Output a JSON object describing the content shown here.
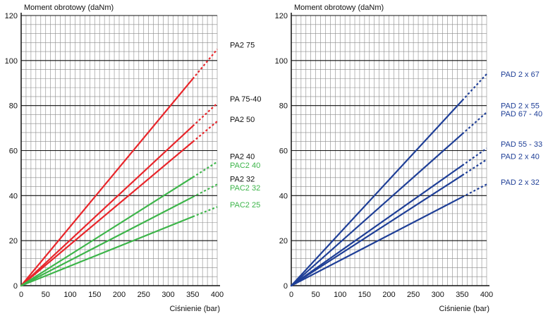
{
  "colors": {
    "red": "#e8262b",
    "green": "#3db54a",
    "blue": "#1f3f97",
    "black": "#111111",
    "grid_minor": "#8a8a8a",
    "grid_major": "#111111"
  },
  "chart_data": [
    {
      "type": "line",
      "ylabel": "Moment obrotowy (daNm)",
      "xlabel": "Ciśnienie (bar)",
      "xlim": [
        0,
        400
      ],
      "ylim": [
        0,
        120
      ],
      "x_ticks": [
        0,
        50,
        100,
        150,
        200,
        250,
        300,
        350,
        400
      ],
      "y_ticks": [
        0,
        20,
        40,
        60,
        80,
        100,
        120
      ],
      "solid_until_x": 350,
      "series": [
        {
          "name": "PA2 75",
          "color": "#e8262b",
          "x": [
            0,
            400
          ],
          "y": [
            0,
            105
          ]
        },
        {
          "name": "PA 75-40",
          "color": "#e8262b",
          "x": [
            0,
            400
          ],
          "y": [
            0,
            81
          ]
        },
        {
          "name": "PA2 50",
          "color": "#e8262b",
          "x": [
            0,
            400
          ],
          "y": [
            0,
            73
          ]
        },
        {
          "name": "PAC2 40",
          "color": "#3db54a",
          "x": [
            0,
            400
          ],
          "y": [
            0,
            55
          ]
        },
        {
          "name": "PAC2 32",
          "color": "#3db54a",
          "x": [
            0,
            400
          ],
          "y": [
            0,
            45
          ]
        },
        {
          "name": "PAC2 25",
          "color": "#3db54a",
          "x": [
            0,
            400
          ],
          "y": [
            0,
            35
          ]
        }
      ],
      "labels": [
        {
          "text": "PA2 75",
          "color": "#111111",
          "y": 107
        },
        {
          "text": "PA 75-40",
          "color": "#111111",
          "y": 83
        },
        {
          "text": "PA2 50",
          "color": "#111111",
          "y": 74
        },
        {
          "text": "PA2 40",
          "color": "#111111",
          "y": 57.5
        },
        {
          "text": "PAC2 40",
          "color": "#3db54a",
          "y": 53.5
        },
        {
          "text": "PA2 32",
          "color": "#111111",
          "y": 47.5
        },
        {
          "text": "PAC2 32",
          "color": "#3db54a",
          "y": 43.5
        },
        {
          "text": "PAC2 25",
          "color": "#3db54a",
          "y": 36
        }
      ]
    },
    {
      "type": "line",
      "ylabel": "Moment obrotowy (daNm)",
      "xlabel": "Ciśnienie (bar)",
      "xlim": [
        0,
        400
      ],
      "ylim": [
        0,
        120
      ],
      "x_ticks": [
        0,
        50,
        100,
        150,
        200,
        250,
        300,
        350,
        400
      ],
      "y_ticks": [
        0,
        20,
        40,
        60,
        80,
        100,
        120
      ],
      "solid_until_x": 350,
      "series": [
        {
          "name": "PAD 2 x 67",
          "color": "#1f3f97",
          "x": [
            0,
            400
          ],
          "y": [
            0,
            94
          ]
        },
        {
          "name": "PAD 67 - 40",
          "color": "#1f3f97",
          "x": [
            0,
            400
          ],
          "y": [
            0,
            77
          ]
        },
        {
          "name": "PAD 55 - 33",
          "color": "#1f3f97",
          "x": [
            0,
            400
          ],
          "y": [
            0,
            61
          ]
        },
        {
          "name": "PAD 2 x 40",
          "color": "#1f3f97",
          "x": [
            0,
            400
          ],
          "y": [
            0,
            56
          ]
        },
        {
          "name": "PAD 2 x 32",
          "color": "#1f3f97",
          "x": [
            0,
            400
          ],
          "y": [
            0,
            45
          ]
        }
      ],
      "labels": [
        {
          "text": "PAD 2 x 67",
          "color": "#1f3f97",
          "y": 94
        },
        {
          "text": "PAD 2 x 55",
          "color": "#1f3f97",
          "y": 80
        },
        {
          "text": "PAD 67 - 40",
          "color": "#1f3f97",
          "y": 76.5
        },
        {
          "text": "PAD 55 - 33",
          "color": "#1f3f97",
          "y": 63
        },
        {
          "text": "PAD 2 x 40",
          "color": "#1f3f97",
          "y": 57.5
        },
        {
          "text": "PAD 2 x 32",
          "color": "#1f3f97",
          "y": 46
        }
      ]
    }
  ]
}
